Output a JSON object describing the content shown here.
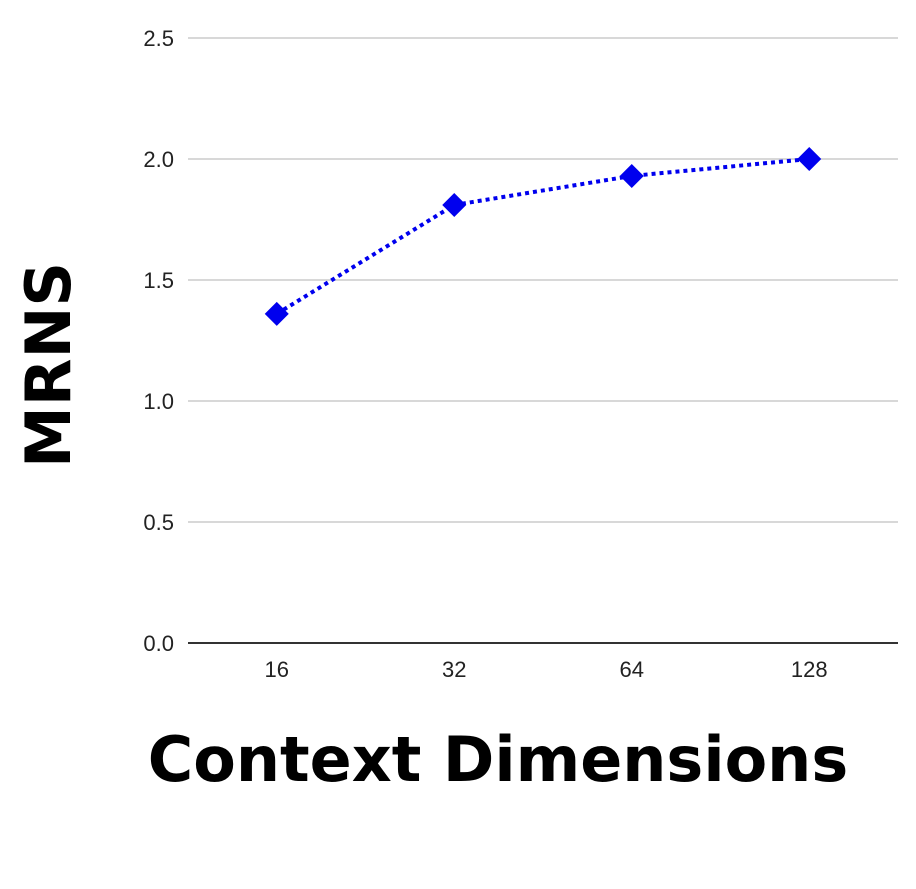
{
  "chart_data": {
    "type": "line",
    "xlabel": "Context Dimensions",
    "ylabel": "MRNS",
    "categories": [
      "16",
      "32",
      "64",
      "128"
    ],
    "series": [
      {
        "values": [
          1.36,
          1.81,
          1.93,
          2.0
        ],
        "color": "#0000ee",
        "line_style": "dotted",
        "marker": "diamond"
      }
    ],
    "ylim": [
      0,
      2.5
    ],
    "yticks": [
      "0.0",
      "0.5",
      "1.0",
      "1.5",
      "2.0",
      "2.5"
    ],
    "grid": true,
    "legend": "none"
  }
}
